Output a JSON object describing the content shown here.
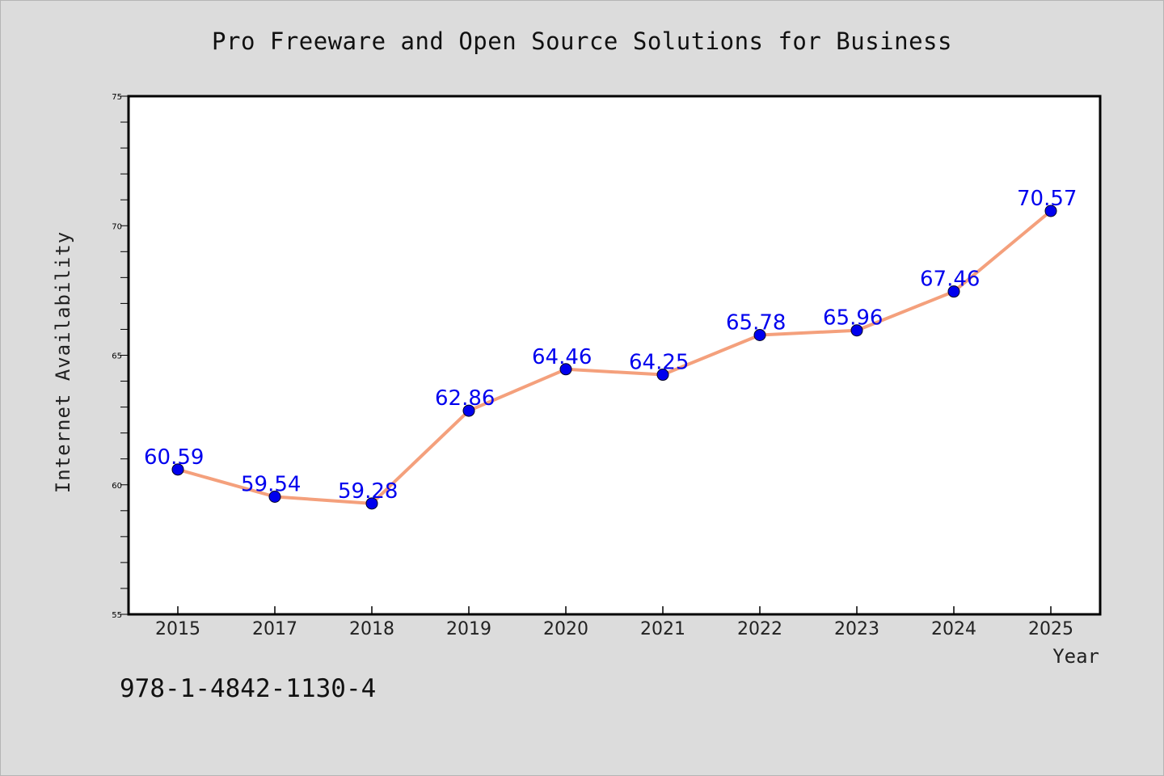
{
  "chart_data": {
    "type": "line",
    "title": "Pro Freeware and Open Source Solutions for Business",
    "xlabel": "Year",
    "ylabel": "Internet Availability",
    "categories": [
      "2015",
      "2017",
      "2018",
      "2019",
      "2020",
      "2021",
      "2022",
      "2023",
      "2024",
      "2025"
    ],
    "series": [
      {
        "values": [
          60.59,
          59.54,
          59.28,
          62.86,
          64.46,
          64.25,
          65.78,
          65.96,
          67.46,
          70.57
        ],
        "line_color": "#f4a07c",
        "marker_color": "#0000ee",
        "label_color": "#0000ee"
      }
    ],
    "ylim": [
      55,
      75
    ],
    "y_major_ticks": [
      55,
      60,
      65,
      70,
      75
    ],
    "y_minor_step": 1,
    "grid": false,
    "legend": "none"
  },
  "footer": {
    "code": "978-1-4842-1130-4"
  }
}
